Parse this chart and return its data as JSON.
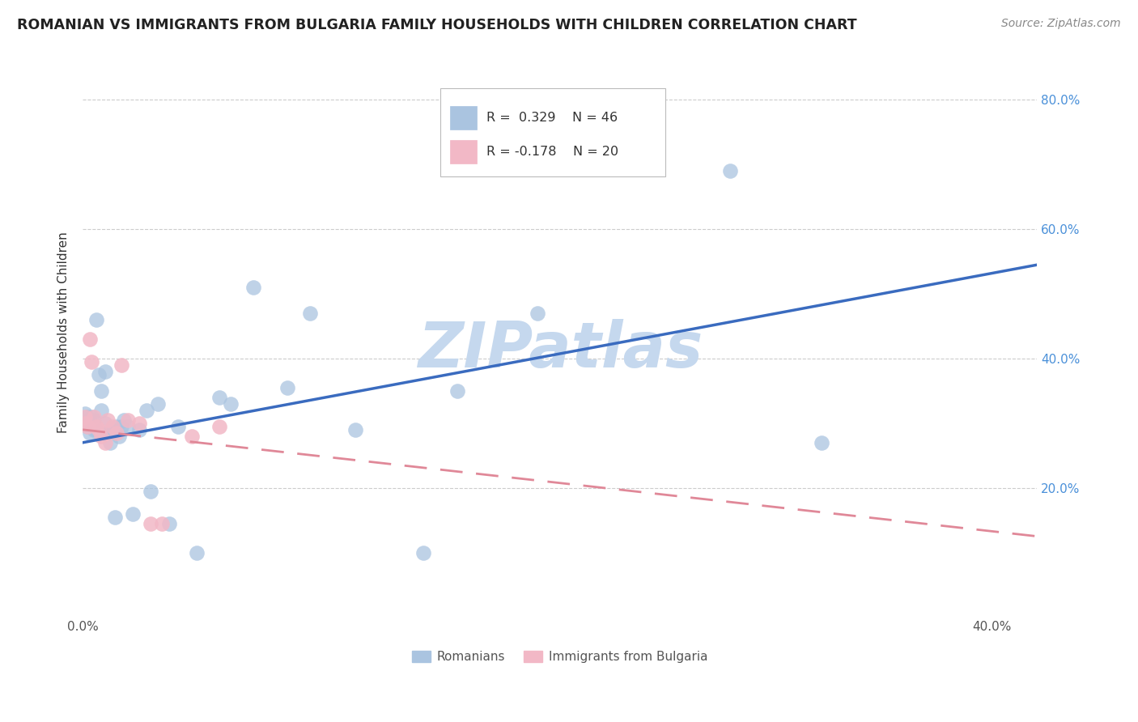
{
  "title": "ROMANIAN VS IMMIGRANTS FROM BULGARIA FAMILY HOUSEHOLDS WITH CHILDREN CORRELATION CHART",
  "source": "Source: ZipAtlas.com",
  "ylabel": "Family Households with Children",
  "xlim": [
    0.0,
    0.42
  ],
  "ylim": [
    0.0,
    0.88
  ],
  "xticks": [
    0.0,
    0.1,
    0.2,
    0.3,
    0.4
  ],
  "yticks": [
    0.2,
    0.4,
    0.6,
    0.8
  ],
  "romanian_R": 0.329,
  "romanian_N": 46,
  "bulgarian_R": -0.178,
  "bulgarian_N": 20,
  "romanian_color": "#aac4e0",
  "bulgarian_color": "#f2b8c6",
  "regression_blue_color": "#3a6bbf",
  "regression_pink_color": "#e08898",
  "watermark_color": "#c5d8ee",
  "rom_x": [
    0.001,
    0.001,
    0.002,
    0.002,
    0.003,
    0.003,
    0.004,
    0.004,
    0.005,
    0.005,
    0.006,
    0.006,
    0.007,
    0.008,
    0.008,
    0.009,
    0.01,
    0.01,
    0.011,
    0.012,
    0.013,
    0.014,
    0.015,
    0.016,
    0.017,
    0.018,
    0.02,
    0.022,
    0.025,
    0.028,
    0.03,
    0.033,
    0.038,
    0.042,
    0.05,
    0.06,
    0.065,
    0.075,
    0.09,
    0.1,
    0.12,
    0.15,
    0.165,
    0.2,
    0.285,
    0.325
  ],
  "rom_y": [
    0.3,
    0.315,
    0.295,
    0.31,
    0.305,
    0.285,
    0.31,
    0.295,
    0.29,
    0.305,
    0.46,
    0.29,
    0.375,
    0.32,
    0.35,
    0.285,
    0.38,
    0.3,
    0.285,
    0.27,
    0.29,
    0.155,
    0.295,
    0.28,
    0.295,
    0.305,
    0.295,
    0.16,
    0.29,
    0.32,
    0.195,
    0.33,
    0.145,
    0.295,
    0.1,
    0.34,
    0.33,
    0.51,
    0.355,
    0.47,
    0.29,
    0.1,
    0.35,
    0.47,
    0.69,
    0.27
  ],
  "bul_x": [
    0.001,
    0.001,
    0.002,
    0.003,
    0.004,
    0.005,
    0.006,
    0.007,
    0.008,
    0.01,
    0.011,
    0.013,
    0.015,
    0.017,
    0.02,
    0.025,
    0.03,
    0.035,
    0.048,
    0.06
  ],
  "bul_y": [
    0.3,
    0.31,
    0.295,
    0.43,
    0.395,
    0.31,
    0.295,
    0.29,
    0.28,
    0.27,
    0.305,
    0.295,
    0.285,
    0.39,
    0.305,
    0.3,
    0.145,
    0.145,
    0.28,
    0.295
  ],
  "blue_line_x": [
    0.0,
    0.42
  ],
  "blue_line_y": [
    0.27,
    0.545
  ],
  "pink_line_x": [
    0.0,
    0.42
  ],
  "pink_line_y": [
    0.29,
    0.125
  ]
}
